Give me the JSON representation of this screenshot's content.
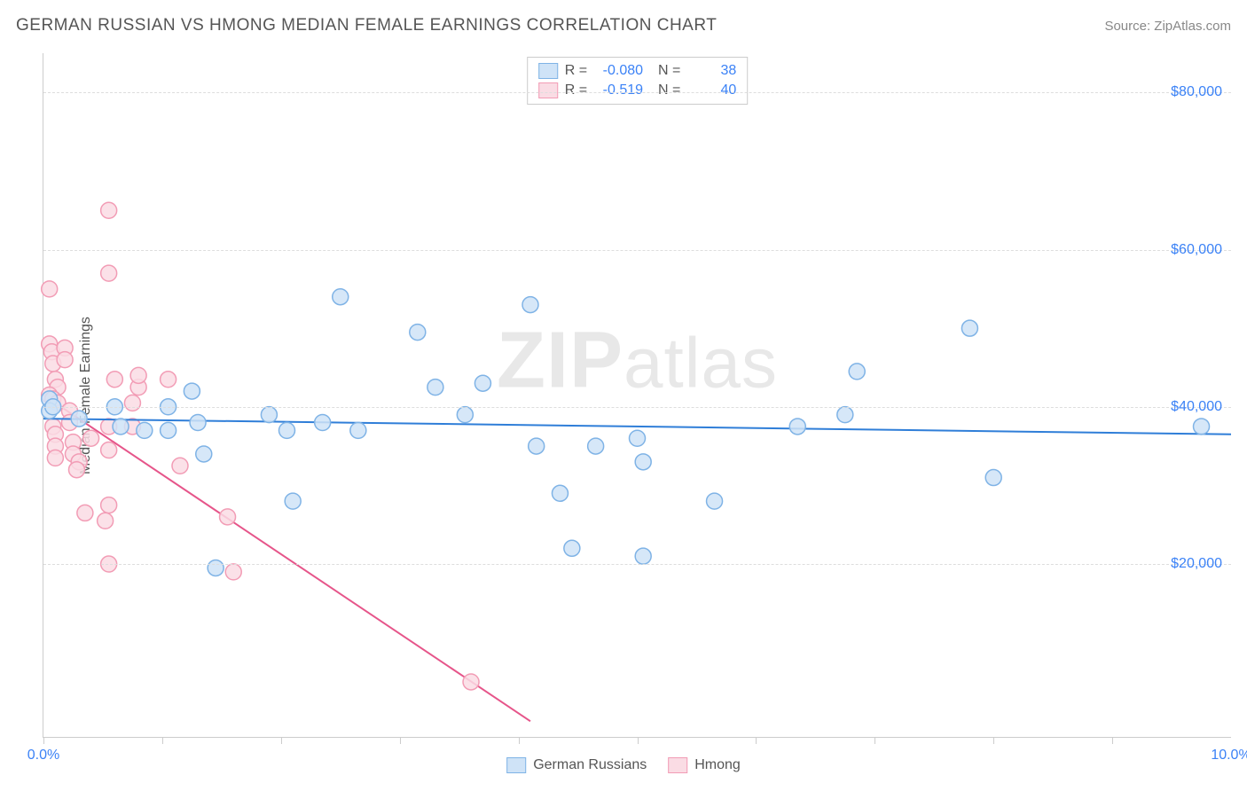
{
  "title": "GERMAN RUSSIAN VS HMONG MEDIAN FEMALE EARNINGS CORRELATION CHART",
  "source": "Source: ZipAtlas.com",
  "ylabel": "Median Female Earnings",
  "watermark_bold": "ZIP",
  "watermark_rest": "atlas",
  "chart": {
    "type": "scatter",
    "xlim": [
      0.0,
      10.0
    ],
    "ylim": [
      -2000,
      85000
    ],
    "x_tick_label_left": "0.0%",
    "x_tick_label_right": "10.0%",
    "x_ticks_pct": [
      0,
      1,
      2,
      3,
      4,
      5,
      6,
      7,
      8,
      9
    ],
    "y_gridlines": [
      20000,
      40000,
      60000,
      80000
    ],
    "y_tick_labels": [
      "$20,000",
      "$40,000",
      "$60,000",
      "$80,000"
    ],
    "background_color": "#ffffff",
    "grid_color": "#dddddd",
    "axis_color": "#cccccc",
    "marker_radius": 9,
    "marker_stroke_width": 1.5,
    "trend_line_width": 2,
    "series": [
      {
        "name": "German Russians",
        "fill": "#cfe3f7",
        "stroke": "#7fb3e6",
        "line_color": "#2f7ed8",
        "R": "-0.080",
        "N": "38",
        "trend": {
          "x1": 0.0,
          "y1": 38500,
          "x2": 10.0,
          "y2": 36500
        },
        "points": [
          {
            "x": 0.05,
            "y": 41000
          },
          {
            "x": 0.05,
            "y": 39500
          },
          {
            "x": 0.08,
            "y": 40000
          },
          {
            "x": 0.6,
            "y": 40000
          },
          {
            "x": 0.65,
            "y": 37500
          },
          {
            "x": 0.3,
            "y": 38500
          },
          {
            "x": 1.05,
            "y": 37000
          },
          {
            "x": 1.25,
            "y": 42000
          },
          {
            "x": 1.3,
            "y": 38000
          },
          {
            "x": 1.35,
            "y": 34000
          },
          {
            "x": 1.45,
            "y": 19500
          },
          {
            "x": 1.05,
            "y": 40000
          },
          {
            "x": 1.9,
            "y": 39000
          },
          {
            "x": 2.05,
            "y": 37000
          },
          {
            "x": 2.1,
            "y": 28000
          },
          {
            "x": 2.35,
            "y": 38000
          },
          {
            "x": 2.5,
            "y": 54000
          },
          {
            "x": 2.65,
            "y": 37000
          },
          {
            "x": 3.15,
            "y": 49500
          },
          {
            "x": 3.3,
            "y": 42500
          },
          {
            "x": 3.55,
            "y": 39000
          },
          {
            "x": 3.7,
            "y": 43000
          },
          {
            "x": 4.1,
            "y": 53000
          },
          {
            "x": 4.15,
            "y": 35000
          },
          {
            "x": 4.35,
            "y": 29000
          },
          {
            "x": 4.65,
            "y": 35000
          },
          {
            "x": 4.45,
            "y": 22000
          },
          {
            "x": 5.05,
            "y": 33000
          },
          {
            "x": 5.0,
            "y": 36000
          },
          {
            "x": 5.05,
            "y": 21000
          },
          {
            "x": 5.65,
            "y": 28000
          },
          {
            "x": 6.35,
            "y": 37500
          },
          {
            "x": 6.75,
            "y": 39000
          },
          {
            "x": 6.85,
            "y": 44500
          },
          {
            "x": 7.8,
            "y": 50000
          },
          {
            "x": 8.0,
            "y": 31000
          },
          {
            "x": 9.75,
            "y": 37500
          },
          {
            "x": 0.85,
            "y": 37000
          }
        ]
      },
      {
        "name": "Hmong",
        "fill": "#fadce4",
        "stroke": "#f29cb5",
        "line_color": "#e6558a",
        "R": "-0.519",
        "N": "40",
        "trend": {
          "x1": 0.0,
          "y1": 41500,
          "x2": 4.1,
          "y2": 0
        },
        "points": [
          {
            "x": 0.05,
            "y": 55000
          },
          {
            "x": 0.05,
            "y": 48000
          },
          {
            "x": 0.07,
            "y": 47000
          },
          {
            "x": 0.08,
            "y": 45500
          },
          {
            "x": 0.1,
            "y": 43500
          },
          {
            "x": 0.12,
            "y": 42500
          },
          {
            "x": 0.05,
            "y": 41500
          },
          {
            "x": 0.08,
            "y": 41000
          },
          {
            "x": 0.12,
            "y": 40500
          },
          {
            "x": 0.18,
            "y": 47500
          },
          {
            "x": 0.18,
            "y": 46000
          },
          {
            "x": 0.22,
            "y": 39500
          },
          {
            "x": 0.22,
            "y": 38000
          },
          {
            "x": 0.08,
            "y": 37500
          },
          {
            "x": 0.1,
            "y": 36500
          },
          {
            "x": 0.1,
            "y": 35000
          },
          {
            "x": 0.25,
            "y": 35500
          },
          {
            "x": 0.25,
            "y": 34000
          },
          {
            "x": 0.3,
            "y": 33000
          },
          {
            "x": 0.28,
            "y": 32000
          },
          {
            "x": 0.35,
            "y": 26500
          },
          {
            "x": 0.55,
            "y": 65000
          },
          {
            "x": 0.55,
            "y": 57000
          },
          {
            "x": 0.55,
            "y": 37500
          },
          {
            "x": 0.55,
            "y": 34500
          },
          {
            "x": 0.55,
            "y": 27500
          },
          {
            "x": 0.55,
            "y": 20000
          },
          {
            "x": 0.6,
            "y": 43500
          },
          {
            "x": 0.52,
            "y": 25500
          },
          {
            "x": 0.75,
            "y": 37500
          },
          {
            "x": 0.75,
            "y": 40500
          },
          {
            "x": 0.8,
            "y": 42500
          },
          {
            "x": 0.8,
            "y": 44000
          },
          {
            "x": 1.05,
            "y": 43500
          },
          {
            "x": 1.15,
            "y": 32500
          },
          {
            "x": 1.55,
            "y": 26000
          },
          {
            "x": 1.6,
            "y": 19000
          },
          {
            "x": 3.6,
            "y": 5000
          },
          {
            "x": 0.1,
            "y": 33500
          },
          {
            "x": 0.4,
            "y": 36000
          }
        ]
      }
    ]
  },
  "legend_bottom": [
    {
      "label": "German Russians",
      "fill": "#cfe3f7",
      "stroke": "#7fb3e6"
    },
    {
      "label": "Hmong",
      "fill": "#fadce4",
      "stroke": "#f29cb5"
    }
  ]
}
